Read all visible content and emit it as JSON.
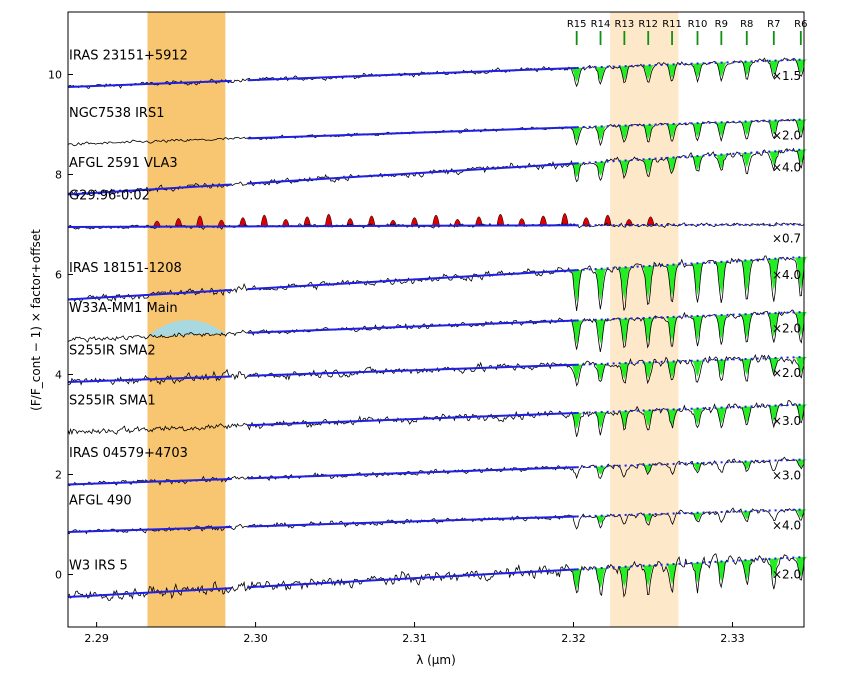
{
  "chart_data": {
    "type": "line",
    "xlabel": "λ (μm)",
    "ylabel": "(F/F_cont − 1) × factor+offset",
    "xlim": [
      2.2882,
      2.3345
    ],
    "ylim": [
      -1.05,
      11.25
    ],
    "xticks": [
      2.29,
      2.3,
      2.31,
      2.32,
      2.33
    ],
    "xtick_labels": [
      "2.29",
      "2.30",
      "2.31",
      "2.32",
      "2.33"
    ],
    "yticks": [
      0,
      2,
      4,
      6,
      8,
      10
    ],
    "ytick_labels": [
      "0",
      "2",
      "4",
      "6",
      "8",
      "10"
    ],
    "shaded_bands": [
      {
        "name": "dark-orange-band",
        "x0": 2.2932,
        "x1": 2.2981,
        "color": "#f5a623",
        "opacity": 0.65
      },
      {
        "name": "light-orange-band",
        "x0": 2.3223,
        "x1": 2.3266,
        "color": "#fbd79c",
        "opacity": 0.55
      }
    ],
    "line_markers": [
      {
        "label": "R15",
        "x": 2.3202
      },
      {
        "label": "R14",
        "x": 2.3217
      },
      {
        "label": "R13",
        "x": 2.3232
      },
      {
        "label": "R12",
        "x": 2.3247
      },
      {
        "label": "R11",
        "x": 2.3262
      },
      {
        "label": "R10",
        "x": 2.3278
      },
      {
        "label": "R9",
        "x": 2.3293
      },
      {
        "label": "R8",
        "x": 2.3309
      },
      {
        "label": "R7",
        "x": 2.3326
      },
      {
        "label": "R6",
        "x": 2.3343
      }
    ],
    "series": [
      {
        "name": "IRAS 23151+5912",
        "factor": "×1.5",
        "offset": 9.75,
        "slope": 0.55,
        "noise": 0.07,
        "fit_segments": [
          [
            2.2882,
            2.2985
          ],
          [
            2.2995,
            2.3202
          ]
        ],
        "fit_dotted": [
          2.3202,
          2.3345
        ],
        "lines": "absorption",
        "amp": 0.35
      },
      {
        "name": "NGC7538 IRS1",
        "factor": "×2.0",
        "offset": 8.6,
        "slope": 0.5,
        "noise": 0.05,
        "fit_segments": [
          [
            2.2995,
            2.3202
          ]
        ],
        "fit_dotted": [
          2.3202,
          2.3345
        ],
        "lines": "absorption",
        "amp": 0.35
      },
      {
        "name": "AFGL 2591 VLA3",
        "factor": "×4.0",
        "offset": 7.6,
        "slope": 0.9,
        "noise": 0.1,
        "fit_segments": [
          [
            2.2882,
            2.2985
          ],
          [
            2.2995,
            2.3202
          ]
        ],
        "fit_dotted": [
          2.3202,
          2.3345
        ],
        "lines": "absorption",
        "amp": 0.35
      },
      {
        "name": "G29.96-0.02",
        "factor": "×0.7",
        "offset": 6.95,
        "slope": 0.05,
        "noise": 0.06,
        "fit_segments": [
          [
            2.2882,
            2.3202
          ]
        ],
        "fit_dotted": [
          2.3202,
          2.3345
        ],
        "lines": "emission",
        "amp": 0.3
      },
      {
        "name": "IRAS 18151-1208",
        "factor": "×4.0",
        "offset": 5.5,
        "slope": 0.85,
        "noise": 0.12,
        "fit_segments": [
          [
            2.2882,
            2.2985
          ],
          [
            2.2995,
            2.3202
          ]
        ],
        "fit_dotted": [
          2.3202,
          2.3345
        ],
        "lines": "absorption",
        "amp": 0.8
      },
      {
        "name": "W33A-MM1 Main",
        "factor": "×2.0",
        "offset": 4.7,
        "slope": 0.55,
        "noise": 0.08,
        "fit_segments": [
          [
            2.2995,
            2.3202
          ]
        ],
        "fit_dotted": [
          2.3202,
          2.3345
        ],
        "lines": "absorption",
        "amp": 0.6
      },
      {
        "name": "S255IR SMA2",
        "factor": "×2.0",
        "offset": 3.85,
        "slope": 0.5,
        "noise": 0.13,
        "fit_segments": [
          [
            2.2882,
            2.2985
          ],
          [
            2.2995,
            2.3202
          ]
        ],
        "fit_dotted": [
          2.3202,
          2.3345
        ],
        "lines": "absorption",
        "amp": 0.4
      },
      {
        "name": "S255IR SMA1",
        "factor": "×3.0",
        "offset": 2.85,
        "slope": 0.55,
        "noise": 0.12,
        "fit_segments": [
          [
            2.2995,
            2.3202
          ]
        ],
        "fit_dotted": [
          2.3202,
          2.3345
        ],
        "lines": "absorption",
        "amp": 0.4
      },
      {
        "name": "IRAS 04579+4703",
        "factor": "×3.0",
        "offset": 1.8,
        "slope": 0.5,
        "noise": 0.08,
        "fit_segments": [
          [
            2.2882,
            2.2985
          ],
          [
            2.2995,
            2.3202
          ]
        ],
        "fit_dotted": [
          2.3202,
          2.3345
        ],
        "lines": "absorption",
        "amp": 0.2
      },
      {
        "name": "AFGL 490",
        "factor": "×4.0",
        "offset": 0.85,
        "slope": 0.45,
        "noise": 0.08,
        "fit_segments": [
          [
            2.2882,
            2.2985
          ],
          [
            2.2995,
            2.3202
          ]
        ],
        "fit_dotted": [
          2.3202,
          2.3345
        ],
        "lines": "absorption",
        "amp": 0.2
      },
      {
        "name": "W3 IRS 5",
        "factor": "×2.0",
        "offset": -0.45,
        "slope": 0.8,
        "noise": 0.18,
        "fit_segments": [
          [
            2.2882,
            2.2985
          ],
          [
            2.2995,
            2.3202
          ]
        ],
        "fit_dotted": [
          2.3202,
          2.3345
        ],
        "lines": "absorption",
        "amp": 0.5
      }
    ]
  },
  "colors": {
    "spectrum": "#000000",
    "fit": "#2020e0",
    "absorption_fill": "#22ee22",
    "emission_fill": "#dd0000",
    "marker": "#109010",
    "ice_fill": "#a8d8e0"
  }
}
